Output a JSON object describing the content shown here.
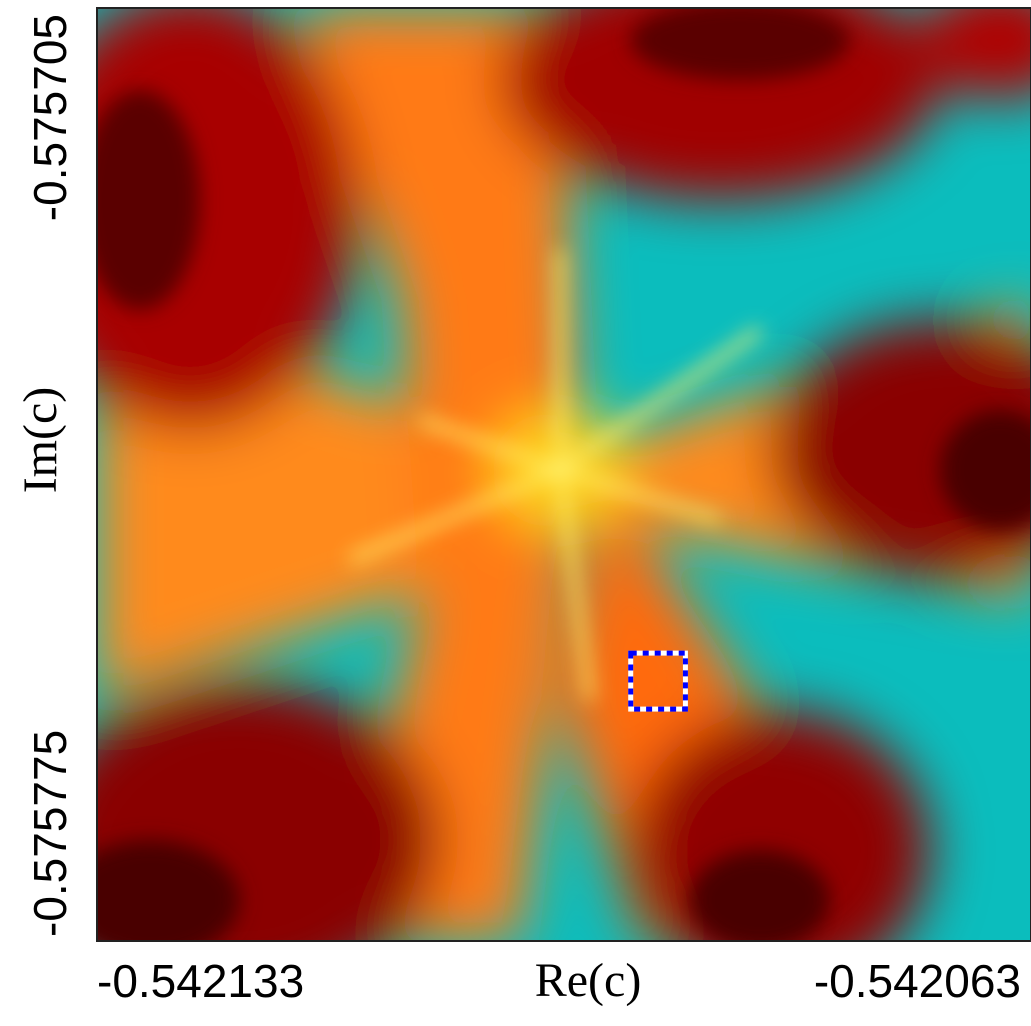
{
  "chart_data": {
    "type": "image",
    "xlabel": "Re(c)",
    "ylabel": "Im(c)",
    "xlim": [
      -0.542133,
      -0.542063
    ],
    "ylim": [
      -0.575775,
      -0.575705
    ],
    "xticks": [
      -0.542133,
      -0.542063
    ],
    "yticks": [
      -0.575775,
      -0.575705
    ],
    "highlight": {
      "x": [
        -0.542093,
        -0.5420889
      ],
      "y": [
        -0.5757576,
        -0.5757534
      ],
      "color": "#0000ff"
    }
  }
}
